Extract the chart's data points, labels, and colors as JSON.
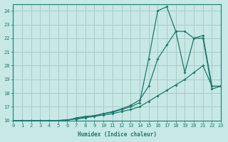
{
  "xlabel": "Humidex (Indice chaleur)",
  "xlim": [
    0,
    23
  ],
  "ylim": [
    16,
    24.5
  ],
  "xticks": [
    0,
    1,
    2,
    3,
    4,
    5,
    6,
    7,
    8,
    9,
    10,
    11,
    12,
    13,
    14,
    15,
    16,
    17,
    18,
    19,
    20,
    21,
    22,
    23
  ],
  "yticks": [
    16,
    17,
    18,
    19,
    20,
    21,
    22,
    23,
    24
  ],
  "background_color": "#c8e8e5",
  "grid_color": "#a8ccc9",
  "line_color": "#1a7a6e",
  "line1_x": [
    0,
    1,
    2,
    3,
    4,
    5,
    6,
    7,
    8,
    9,
    10,
    11,
    12,
    13,
    14,
    15,
    16,
    17,
    18,
    19,
    20,
    21,
    22,
    23
  ],
  "line1_y": [
    16,
    16,
    16,
    16,
    16,
    15.85,
    16.0,
    16.2,
    16.3,
    16.35,
    16.5,
    16.6,
    16.8,
    17.0,
    17.3,
    20.5,
    24.0,
    24.3,
    22.5,
    19.5,
    22.0,
    22.2,
    18.5,
    18.5
  ],
  "line2_x": [
    0,
    1,
    2,
    3,
    4,
    5,
    6,
    7,
    8,
    9,
    10,
    11,
    12,
    13,
    14,
    15,
    16,
    17,
    18,
    19,
    20,
    21,
    22,
    23
  ],
  "line2_y": [
    16,
    16,
    16,
    16,
    16,
    16.0,
    16.05,
    16.15,
    16.25,
    16.35,
    16.5,
    16.65,
    16.85,
    17.1,
    17.5,
    18.5,
    20.5,
    21.5,
    22.5,
    22.5,
    22.0,
    22.0,
    18.3,
    18.5
  ],
  "line3_x": [
    0,
    1,
    2,
    3,
    4,
    5,
    6,
    7,
    8,
    9,
    10,
    11,
    12,
    13,
    14,
    15,
    16,
    17,
    18,
    19,
    20,
    21,
    22,
    23
  ],
  "line3_y": [
    16,
    16,
    16,
    16,
    16,
    16.0,
    16.05,
    16.1,
    16.2,
    16.3,
    16.4,
    16.5,
    16.65,
    16.8,
    17.0,
    17.4,
    17.8,
    18.2,
    18.6,
    19.0,
    19.5,
    20.0,
    18.5,
    18.5
  ]
}
